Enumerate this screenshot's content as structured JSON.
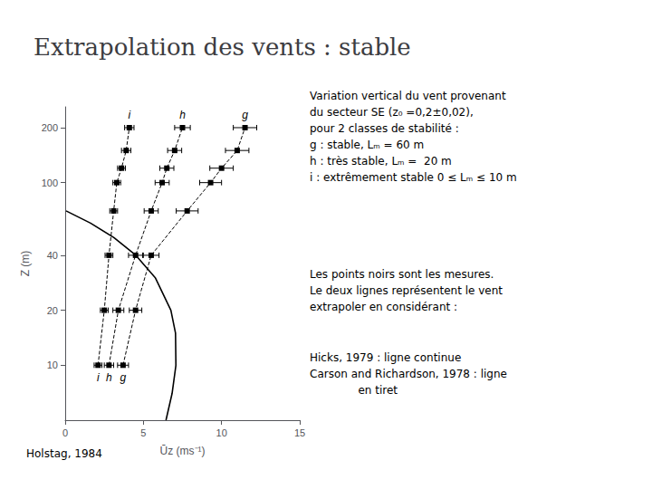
{
  "chart_data": {
    "type": "line",
    "title": "Extrapolation des vents : stable",
    "xlabel": "Ūz (ms⁻¹)",
    "ylabel": "Z (m)",
    "xlim": [
      0,
      15
    ],
    "ylim": [
      5,
      260
    ],
    "xticks": [
      0,
      5,
      10,
      15
    ],
    "yticks": [
      10,
      20,
      40,
      100,
      200
    ],
    "log": "y",
    "grid": false,
    "annotations": [
      "Variation vertical du vent provenant\ndu secteur SE (z₀ =0,2±0,02),\npour 2 classes de stabilité :\ng : stable, Lₘ = 60 m\nh : très stable, Lₘ =  20 m\ni : extrêmement stable 0 ≤ Lₘ ≤ 10 m",
      "Les points noirs sont les mesures.\nLe deux lignes représentent le vent\nextrapoler en considérant :",
      "Hicks, 1979 : ligne continue\nCarson and Richardson, 1978 : ligne\n              en tiret",
      "Holstag, 1984"
    ],
    "series": [
      {
        "name": "i",
        "color": "#000000",
        "marker": "square",
        "line_style": "dashed",
        "x": [
          2.1,
          2.5,
          2.8,
          3.1,
          3.3,
          3.6,
          3.9,
          4.1
        ],
        "values": [
          10,
          20,
          40,
          70,
          100,
          120,
          150,
          200
        ],
        "xerr": [
          0.25,
          0.25,
          0.25,
          0.25,
          0.25,
          0.25,
          0.3,
          0.3
        ]
      },
      {
        "name": "h",
        "color": "#000000",
        "marker": "square",
        "line_style": "dashed",
        "x": [
          2.8,
          3.4,
          4.5,
          5.5,
          6.2,
          6.5,
          7.0,
          7.5
        ],
        "values": [
          10,
          20,
          40,
          70,
          100,
          120,
          150,
          200
        ],
        "xerr": [
          0.3,
          0.35,
          0.45,
          0.45,
          0.45,
          0.45,
          0.45,
          0.5
        ]
      },
      {
        "name": "g",
        "color": "#000000",
        "marker": "square",
        "line_style": "dashed",
        "x": [
          3.7,
          4.5,
          5.5,
          7.8,
          9.3,
          10.0,
          11.0,
          11.5
        ],
        "values": [
          10,
          20,
          40,
          70,
          100,
          120,
          150,
          200
        ],
        "xerr": [
          0.35,
          0.4,
          0.5,
          0.7,
          0.7,
          0.75,
          0.75,
          0.75
        ]
      },
      {
        "color": "#000000",
        "marker": "none",
        "line_style": "solid",
        "x": [
          6.445,
          6.836,
          7.081,
          7.055,
          6.759,
          5.774,
          4.519,
          3.116,
          1.619,
          0.057
        ],
        "values": [
          5,
          7,
          10,
          15,
          20,
          30,
          40,
          50,
          60,
          70
        ]
      }
    ]
  }
}
